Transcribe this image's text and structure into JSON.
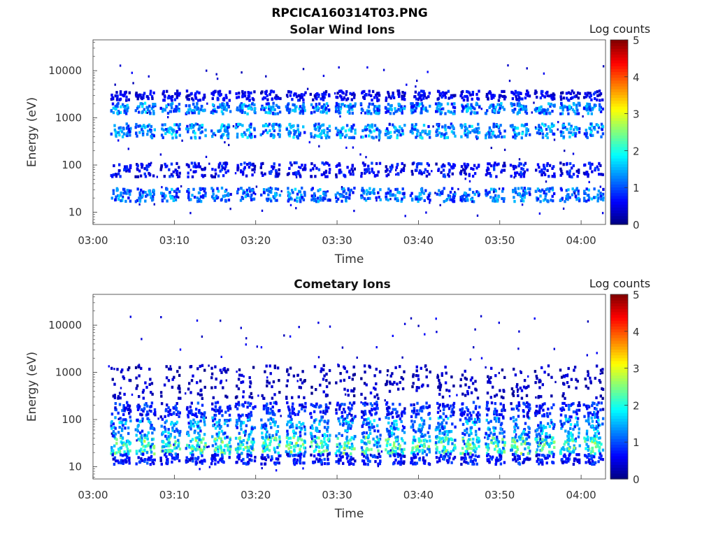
{
  "figure": {
    "title": "RPCICA160314T03.PNG"
  },
  "colormap": "jet",
  "chart_data": [
    {
      "type": "heatmap",
      "title": "Solar Wind Ions",
      "xlabel": "Time",
      "ylabel": "Energy (eV)",
      "yscale": "log",
      "xlim_minutes_after_0300": [
        0,
        63
      ],
      "ylim": [
        5.5,
        45000
      ],
      "x_ticks": [
        "03:00",
        "03:10",
        "03:20",
        "03:30",
        "03:40",
        "03:50",
        "04:00"
      ],
      "y_ticks": [
        "10",
        "100",
        "1000",
        "10000"
      ],
      "y_tick_values": [
        10,
        100,
        1000,
        10000
      ],
      "colorbar": {
        "label": "Log counts",
        "range": [
          0,
          5
        ],
        "ticks": [
          "0",
          "1",
          "2",
          "3",
          "4",
          "5"
        ]
      },
      "sweep_centers_minutes": [
        3.3,
        6.3,
        9.4,
        12.5,
        15.6,
        18.6,
        21.7,
        24.8,
        27.8,
        30.9,
        34.0,
        37.0,
        40.1,
        43.2,
        46.2,
        49.3,
        52.4,
        55.4,
        58.5,
        61.4
      ],
      "bands": [
        {
          "energy_min": 400,
          "energy_max": 800,
          "peak_log_counts": 1.9
        },
        {
          "energy_min": 1300,
          "energy_max": 2200,
          "peak_log_counts": 1.8
        },
        {
          "energy_min": 18,
          "energy_max": 35,
          "peak_log_counts": 1.7
        },
        {
          "energy_min": 60,
          "energy_max": 120,
          "peak_log_counts": 1.0
        },
        {
          "energy_min": 2500,
          "energy_max": 4000,
          "peak_log_counts": 0.9
        }
      ]
    },
    {
      "type": "heatmap",
      "title": "Cometary Ions",
      "xlabel": "Time",
      "ylabel": "Energy (eV)",
      "yscale": "log",
      "xlim_minutes_after_0300": [
        0,
        63
      ],
      "ylim": [
        5.5,
        45000
      ],
      "x_ticks": [
        "03:00",
        "03:10",
        "03:20",
        "03:30",
        "03:40",
        "03:50",
        "04:00"
      ],
      "y_ticks": [
        "10",
        "100",
        "1000",
        "10000"
      ],
      "y_tick_values": [
        10,
        100,
        1000,
        10000
      ],
      "colorbar": {
        "label": "Log counts",
        "range": [
          0,
          5
        ],
        "ticks": [
          "0",
          "1",
          "2",
          "3",
          "4",
          "5"
        ]
      },
      "sweep_centers_minutes": [
        3.3,
        6.3,
        9.4,
        12.5,
        15.6,
        18.6,
        21.7,
        24.8,
        27.8,
        30.9,
        34.0,
        37.0,
        40.1,
        43.2,
        46.2,
        49.3,
        52.4,
        55.4,
        58.5,
        61.4
      ],
      "bands": [
        {
          "energy_min": 20,
          "energy_max": 45,
          "peak_log_counts": 2.8
        },
        {
          "energy_min": 45,
          "energy_max": 120,
          "peak_log_counts": 1.9
        },
        {
          "energy_min": 120,
          "energy_max": 250,
          "peak_log_counts": 1.2
        },
        {
          "energy_min": 12,
          "energy_max": 20,
          "peak_log_counts": 1.1
        },
        {
          "energy_min": 300,
          "energy_max": 1500,
          "peak_log_counts": 0.6
        }
      ]
    }
  ]
}
